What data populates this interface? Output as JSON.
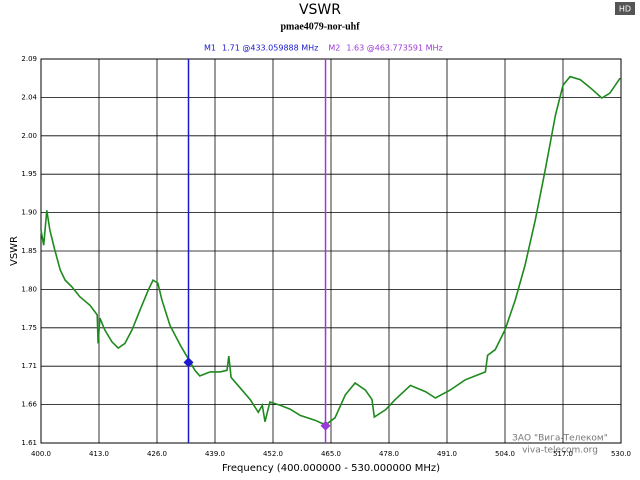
{
  "chart_data": {
    "type": "line",
    "title": "VSWR",
    "subtitle": "pmae4079-nor-uhf",
    "xlabel": "Frequency (400.000000 - 530.000000 MHz)",
    "ylabel": "VSWR",
    "badge": "HD",
    "watermark": [
      "ЗАО \"Вига-Телеком\"",
      "viva-telecom.org"
    ],
    "xlim": [
      400,
      530
    ],
    "xticks": [
      {
        "value": 400,
        "label": "400.0"
      },
      {
        "value": 413,
        "label": "413.0"
      },
      {
        "value": 426,
        "label": "426.0"
      },
      {
        "value": 439,
        "label": "439.0"
      },
      {
        "value": 452,
        "label": "452.0"
      },
      {
        "value": 465,
        "label": "465.0"
      },
      {
        "value": 478,
        "label": "478.0"
      },
      {
        "value": 491,
        "label": "491.0"
      },
      {
        "value": 504,
        "label": "504.0"
      },
      {
        "value": 517,
        "label": "517.0"
      },
      {
        "value": 530,
        "label": "530.0"
      }
    ],
    "ylim": [
      1.6082,
      2.0932
    ],
    "yticks": [
      {
        "value": 1.6082,
        "label": "1.61"
      },
      {
        "value": 1.6567,
        "label": "1.66"
      },
      {
        "value": 1.7052,
        "label": "1.71"
      },
      {
        "value": 1.7537,
        "label": "1.75"
      },
      {
        "value": 1.8022,
        "label": "1.80"
      },
      {
        "value": 1.8507,
        "label": "1.85"
      },
      {
        "value": 1.8992,
        "label": "1.90"
      },
      {
        "value": 1.9477,
        "label": "1.95"
      },
      {
        "value": 1.9962,
        "label": "2.00"
      },
      {
        "value": 2.0447,
        "label": "2.04"
      },
      {
        "value": 2.0932,
        "label": "2.09"
      }
    ],
    "grid": true,
    "x": [
      400,
      400.6,
      401.3,
      402,
      403.1,
      404.3,
      405.4,
      407,
      408.7,
      411,
      412.6,
      412.8,
      413.2,
      414.3,
      415.9,
      417.3,
      418.8,
      420.4,
      422.2,
      424,
      425.1,
      426.2,
      427.1,
      428.9,
      431.2,
      433.06,
      434.5,
      435.6,
      437.9,
      440.1,
      441.7,
      442.1,
      442.6,
      444.6,
      446.9,
      448.7,
      449.6,
      450.2,
      451.3,
      453.6,
      455.8,
      458.1,
      461.4,
      463.77,
      465.9,
      468.2,
      470.4,
      472.7,
      474.2,
      474.7,
      477.2,
      479.4,
      482.8,
      486.2,
      488.4,
      491.7,
      495.1,
      499.6,
      500.1,
      501.8,
      504,
      506.3,
      508.5,
      510.8,
      513,
      515.3,
      517,
      518.6,
      520.9,
      523.1,
      525.7,
      527.5,
      529.8
    ],
    "series": [
      {
        "name": "VSWR",
        "color": "#1e8a1e",
        "values": [
          1.877,
          1.858,
          1.902,
          1.877,
          1.852,
          1.827,
          1.814,
          1.805,
          1.793,
          1.782,
          1.77,
          1.734,
          1.766,
          1.751,
          1.736,
          1.728,
          1.734,
          1.751,
          1.776,
          1.801,
          1.814,
          1.81,
          1.789,
          1.757,
          1.732,
          1.714,
          1.7,
          1.693,
          1.698,
          1.698,
          1.7,
          1.718,
          1.691,
          1.678,
          1.663,
          1.647,
          1.656,
          1.635,
          1.66,
          1.656,
          1.651,
          1.643,
          1.637,
          1.631,
          1.64,
          1.669,
          1.684,
          1.675,
          1.663,
          1.641,
          1.65,
          1.663,
          1.681,
          1.673,
          1.665,
          1.675,
          1.688,
          1.698,
          1.719,
          1.726,
          1.751,
          1.789,
          1.833,
          1.89,
          1.953,
          2.022,
          2.06,
          2.071,
          2.067,
          2.057,
          2.044,
          2.05,
          2.069
        ]
      }
    ],
    "markers": [
      {
        "name": "M1",
        "x": 433.059888,
        "y": 1.71,
        "label": "1.71 @433.059888 MHz",
        "color": "#1a1acc"
      },
      {
        "name": "M2",
        "x": 463.773591,
        "y": 1.63,
        "label": "1.63 @463.773591 MHz",
        "color": "#9a3ad6"
      }
    ]
  }
}
